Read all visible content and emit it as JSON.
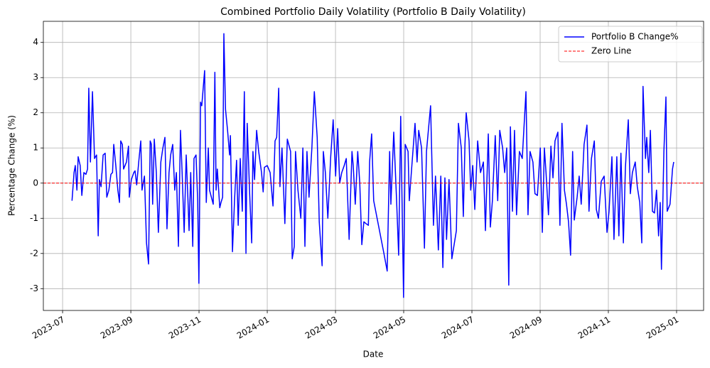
{
  "chart_data": {
    "type": "line",
    "title": "Combined Portfolio Daily Volatility (Portfolio B Daily Volatility)",
    "x_label": "Date",
    "y_label": "Percentage Change (%)",
    "x": [
      2023.523,
      2023.528,
      2023.531,
      2023.535,
      2023.538,
      2023.543,
      2023.547,
      2023.552,
      2023.557,
      2023.561,
      2023.564,
      2023.568,
      2023.573,
      2023.578,
      2023.583,
      2023.587,
      2023.59,
      2023.594,
      2023.599,
      2023.604,
      2023.608,
      2023.613,
      2023.618,
      2023.622,
      2023.625,
      2023.63,
      2023.635,
      2023.639,
      2023.642,
      2023.646,
      2023.649,
      2023.656,
      2023.661,
      2023.663,
      2023.668,
      2023.674,
      2023.677,
      2023.681,
      2023.686,
      2023.691,
      2023.694,
      2023.7,
      2023.705,
      2023.71,
      2023.714,
      2023.717,
      2023.72,
      2023.724,
      2023.729,
      2023.734,
      2023.74,
      2023.745,
      2023.75,
      2023.755,
      2023.76,
      2023.764,
      2023.769,
      2023.774,
      2023.778,
      2023.783,
      2023.788,
      2023.792,
      2023.797,
      2023.802,
      2023.806,
      2023.809,
      2023.813,
      2023.818,
      2023.821,
      2023.826,
      2023.83,
      2023.833,
      2023.837,
      2023.84,
      2023.847,
      2023.851,
      2023.856,
      2023.859,
      2023.868,
      2023.872,
      2023.875,
      2023.878,
      2023.884,
      2023.887,
      2023.891,
      2023.894,
      2023.898,
      2023.903,
      2023.908,
      2023.91,
      2023.915,
      2023.92,
      2023.925,
      2023.929,
      2023.934,
      2023.939,
      2023.944,
      2023.948,
      2023.951,
      2023.957,
      2023.962,
      2023.965,
      2023.969,
      2023.974,
      2023.979,
      2023.986,
      2023.99,
      2023.993,
      2024.0,
      2024.007,
      2024.014,
      2024.019,
      2024.023,
      2024.028,
      2024.031,
      2024.036,
      2024.043,
      2024.049,
      2024.057,
      2024.061,
      2024.066,
      2024.069,
      2024.075,
      2024.082,
      2024.087,
      2024.092,
      2024.097,
      2024.102,
      2024.109,
      2024.115,
      2024.122,
      2024.127,
      2024.134,
      2024.137,
      2024.142,
      2024.148,
      2024.155,
      2024.161,
      2024.167,
      2024.172,
      2024.177,
      2024.182,
      2024.188,
      2024.193,
      2024.2,
      2024.207,
      2024.21,
      2024.215,
      2024.221,
      2024.226,
      2024.231,
      2024.236,
      2024.241,
      2024.247,
      2024.25,
      2024.255,
      2024.26,
      2024.285,
      2024.293,
      2024.299,
      2024.302,
      2024.309,
      2024.316,
      2024.321,
      2024.326,
      2024.333,
      2024.337,
      2024.344,
      2024.347,
      2024.352,
      2024.361,
      2024.366,
      2024.37,
      2024.377,
      2024.384,
      2024.389,
      2024.399,
      2024.406,
      2024.411,
      2024.418,
      2024.424,
      2024.429,
      2024.434,
      2024.438,
      2024.444,
      2024.451,
      2024.462,
      2024.467,
      2024.474,
      2024.479,
      2024.483,
      2024.486,
      2024.493,
      2024.497,
      2024.502,
      2024.507,
      2024.514,
      2024.521,
      2024.528,
      2024.533,
      2024.54,
      2024.545,
      2024.55,
      2024.557,
      2024.563,
      2024.568,
      2024.575,
      2024.58,
      2024.585,
      2024.59,
      2024.594,
      2024.599,
      2024.604,
      2024.609,
      2024.616,
      2024.623,
      2024.632,
      2024.637,
      2024.642,
      2024.649,
      2024.654,
      2024.66,
      2024.667,
      2024.672,
      2024.677,
      2024.681,
      2024.687,
      2024.693,
      2024.698,
      2024.703,
      2024.71,
      2024.715,
      2024.72,
      2024.726,
      2024.731,
      2024.736,
      2024.741,
      2024.746,
      2024.75,
      2024.757,
      2024.762,
      2024.767,
      2024.774,
      2024.781,
      2024.786,
      2024.792,
      2024.799,
      2024.804,
      2024.809,
      2024.816,
      2024.823,
      2024.83,
      2024.835,
      2024.842,
      2024.847,
      2024.854,
      2024.859,
      2024.864,
      2024.87,
      2024.875,
      2024.882,
      2024.887,
      2024.892,
      2024.899,
      2024.904,
      2024.91,
      2024.915,
      2024.918,
      2024.924,
      2024.927,
      2024.932,
      2024.936,
      2024.941,
      2024.946,
      2024.951,
      2024.956,
      2024.96,
      2024.963,
      2024.969,
      2024.974,
      2024.977,
      2024.984,
      2024.99,
      2024.993
    ],
    "series": [
      {
        "name": "Portfolio B Change%",
        "color": "#0000ff",
        "values": [
          -0.5,
          0.3,
          0.5,
          -0.2,
          0.75,
          0.5,
          -0.35,
          0.3,
          0.25,
          0.4,
          2.7,
          0.6,
          2.6,
          0.7,
          0.8,
          -1.5,
          0.1,
          -0.1,
          0.8,
          0.85,
          -0.4,
          -0.2,
          0.25,
          0.3,
          1.1,
          0.5,
          -0.2,
          -0.55,
          1.2,
          1.1,
          0.4,
          0.6,
          1.05,
          -0.4,
          0.1,
          0.3,
          0.35,
          -0.05,
          0.6,
          1.2,
          -0.2,
          0.2,
          -1.7,
          -2.3,
          1.2,
          1.1,
          -0.6,
          1.25,
          0.3,
          -1.4,
          0.6,
          1.0,
          1.3,
          -1.3,
          0.3,
          0.8,
          1.1,
          -0.2,
          0.3,
          -1.8,
          1.5,
          0.3,
          -1.4,
          0.8,
          -0.4,
          -1.35,
          0.3,
          -1.8,
          0.7,
          0.8,
          -0.5,
          -2.85,
          2.3,
          2.2,
          3.2,
          -0.55,
          1.0,
          -0.2,
          -0.6,
          3.15,
          -0.2,
          0.4,
          -0.7,
          -0.55,
          -0.4,
          4.25,
          2.1,
          1.5,
          0.8,
          1.35,
          -1.95,
          -0.5,
          0.65,
          -1.2,
          0.7,
          -0.8,
          2.6,
          -2.0,
          1.7,
          -0.3,
          -1.7,
          0.9,
          0.1,
          1.5,
          0.9,
          0.3,
          -0.25,
          0.45,
          0.5,
          0.3,
          -0.65,
          1.2,
          1.3,
          2.7,
          -0.1,
          1.0,
          -1.15,
          1.25,
          0.9,
          -2.15,
          -1.8,
          0.9,
          -0.2,
          -1.0,
          1.0,
          -1.8,
          0.9,
          -0.4,
          1.0,
          2.6,
          1.3,
          -1.1,
          -2.35,
          0.9,
          0.3,
          -1.0,
          0.75,
          1.8,
          0.2,
          1.55,
          0.0,
          0.3,
          0.5,
          0.7,
          -1.6,
          0.9,
          0.5,
          -0.6,
          0.9,
          0.0,
          -1.75,
          -1.1,
          -1.15,
          -1.2,
          0.6,
          1.4,
          -0.5,
          -2.0,
          -2.5,
          0.9,
          -0.6,
          1.45,
          -0.5,
          -2.05,
          1.9,
          -3.25,
          1.1,
          0.9,
          -0.5,
          0.3,
          1.7,
          0.6,
          1.5,
          1.0,
          -1.85,
          0.9,
          2.2,
          -1.2,
          0.2,
          -1.9,
          0.2,
          -2.4,
          0.15,
          -1.6,
          0.1,
          -2.15,
          -1.35,
          1.7,
          1.0,
          -0.95,
          1.1,
          2.0,
          1.2,
          -0.2,
          0.5,
          -0.75,
          1.2,
          0.3,
          0.6,
          -1.35,
          1.4,
          -1.25,
          -0.5,
          1.35,
          -0.5,
          1.5,
          1.0,
          0.3,
          1.0,
          -2.9,
          1.6,
          -0.8,
          1.5,
          -0.9,
          0.9,
          0.7,
          2.6,
          -0.9,
          0.9,
          0.6,
          -0.3,
          -0.35,
          1.0,
          -1.4,
          1.0,
          0.3,
          -0.9,
          1.05,
          0.15,
          1.2,
          1.45,
          -1.2,
          1.7,
          -0.2,
          -0.6,
          -1.1,
          -2.05,
          0.9,
          -1.05,
          -0.4,
          0.2,
          -0.6,
          1.1,
          1.65,
          -0.8,
          0.7,
          1.2,
          -0.75,
          -1.0,
          0.05,
          0.2,
          -1.4,
          -0.8,
          0.75,
          -1.6,
          0.75,
          -1.5,
          0.85,
          -1.7,
          0.45,
          1.8,
          -0.3,
          0.3,
          0.6,
          -0.1,
          -0.55,
          -1.7,
          2.75,
          0.7,
          1.3,
          0.3,
          1.5,
          -0.8,
          -0.85,
          -0.2,
          -1.5,
          -0.55,
          -2.45,
          0.9,
          2.45,
          -0.8,
          -0.6,
          0.4,
          0.6
        ]
      }
    ],
    "reference_lines": [
      {
        "name": "Zero Line",
        "value": 0,
        "color": "#ff0000",
        "style": "dashed"
      }
    ],
    "xlim": [
      2023.453,
      2025.066
    ],
    "ylim": [
      -3.62,
      4.6
    ],
    "xticks": [
      {
        "value": 2023.5,
        "label": "2023-07"
      },
      {
        "value": 2023.6667,
        "label": "2023-09"
      },
      {
        "value": 2023.8333,
        "label": "2023-11"
      },
      {
        "value": 2024.0,
        "label": "2024-01"
      },
      {
        "value": 2024.1667,
        "label": "2024-03"
      },
      {
        "value": 2024.3333,
        "label": "2024-05"
      },
      {
        "value": 2024.5,
        "label": "2024-07"
      },
      {
        "value": 2024.6667,
        "label": "2024-09"
      },
      {
        "value": 2024.8333,
        "label": "2024-11"
      },
      {
        "value": 2025.0,
        "label": "2025-01"
      }
    ],
    "yticks": [
      -3,
      -2,
      -1,
      0,
      1,
      2,
      3,
      4
    ],
    "grid": true,
    "legend": "upper right"
  }
}
